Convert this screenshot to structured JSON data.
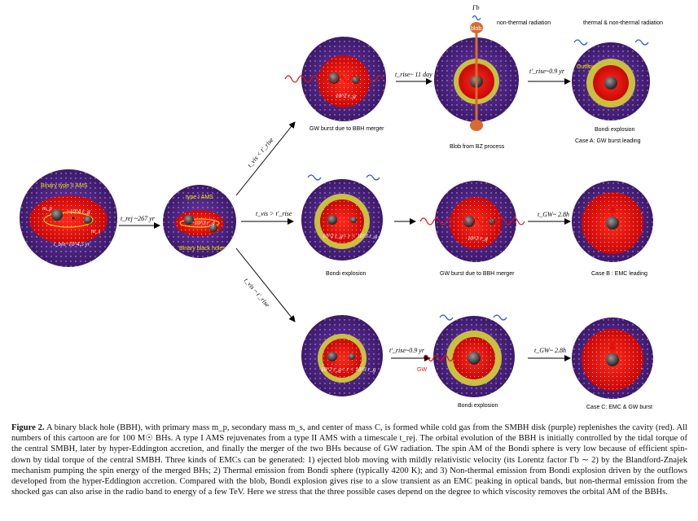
{
  "caption": {
    "label": "Figure 2.",
    "text": "A binary black hole (BBH), with primary mass m_p, secondary mass m_s, and center of mass C, is formed while cold gas from the SMBH disk (purple) replenishes the cavity (red). All numbers of this cartoon are for 100 M☉ BHs. A type I AMS rejuvenates from a type II AMS with a timescale t_rej. The orbital evolution of the BBH is initially controlled by the tidal torque of the central SMBH, later by hyper-Eddington accretion, and finally the merger of the two BHs because of GW radiation. The spin AM of the Bondi sphere is very low because of efficient spin-down by tidal torque of the central SMBH. Three kinds of EMCs can be generated: 1) ejected blob moving with mildly relativistic velocity (its Lorentz factor Γb ∼ 2) by the Blandford-Znajek mechanism pumping the spin energy of the merged BHs; 2) Thermal emission from Bondi sphere (typically 4200 K); and 3) Non-thermal emission from Bondi explosion driven by the outflows developed from the hyper-Eddington accretion. Compared with the blob, Bondi explosion gives rise to a slow transient as an EMC peaking in optical bands, but non-thermal emission from the shocked gas can also arise in the radio band to energy of a few TeV. Here we stress that the three possible cases depend on the degree to which viscosity removes the orbital AM of the BBHs."
  },
  "labels": {
    "binary_ams": "Binary type II AMS",
    "type1_ams": "type I AMS",
    "binary_bh": "Binary black holes",
    "t_rej": "t_rej ~267 yr",
    "t_bin": "t_bin~10^4.5 yr",
    "r_10_4": "~10^4 r_g",
    "r_10_3": "~10^3 r_g",
    "r_10_2": "10^2 r_g",
    "r_range": "10^2 r_g< r < 10^3 r_g",
    "r_1": "10^2 r_g",
    "ms": "m_s",
    "mp": "m_p",
    "c": "C",
    "cond_top": "t_vis < t'_rise",
    "cond_mid": "t_vis > t'_rise",
    "cond_bot": "t_vis ~ t'_rise",
    "gw_merger_top": "GW burst due to BBH merger",
    "t_rise_11": "t_rise~ 11 day",
    "gamma_b": "Γb",
    "blob": "blob",
    "nonthermal": "non-thermal radiation",
    "blob_bz": "Blob from BZ process",
    "t_rise_09_a": "t'_rise~0.9 yr",
    "thermal_nonthermal": "thermal & non-thermal radiation",
    "outflow": "Outflow",
    "bondi_explosion_a": "Bondi explosion",
    "case_a": "Case A: GW burst leading",
    "bondi_explosion_mid": "Bondi explosion",
    "gw_merger_mid": "GW burst due to BBH merger",
    "t_gw_28_b": "t_GW~ 2.8h",
    "case_b": "Case B : EMC leading",
    "t_rise_09_c": "t'_rise~0.9 yr",
    "gw": "GW",
    "bondi_explosion_c": "Bondi explosion",
    "t_gw_28_c": "t_GW~ 2.8h",
    "case_c": "Case C: EMC & GW burst"
  },
  "colors": {
    "purple": "#5b2d8e",
    "red": "#e01010",
    "yellow": "#c9c040",
    "bh": "#4a4a4a"
  }
}
